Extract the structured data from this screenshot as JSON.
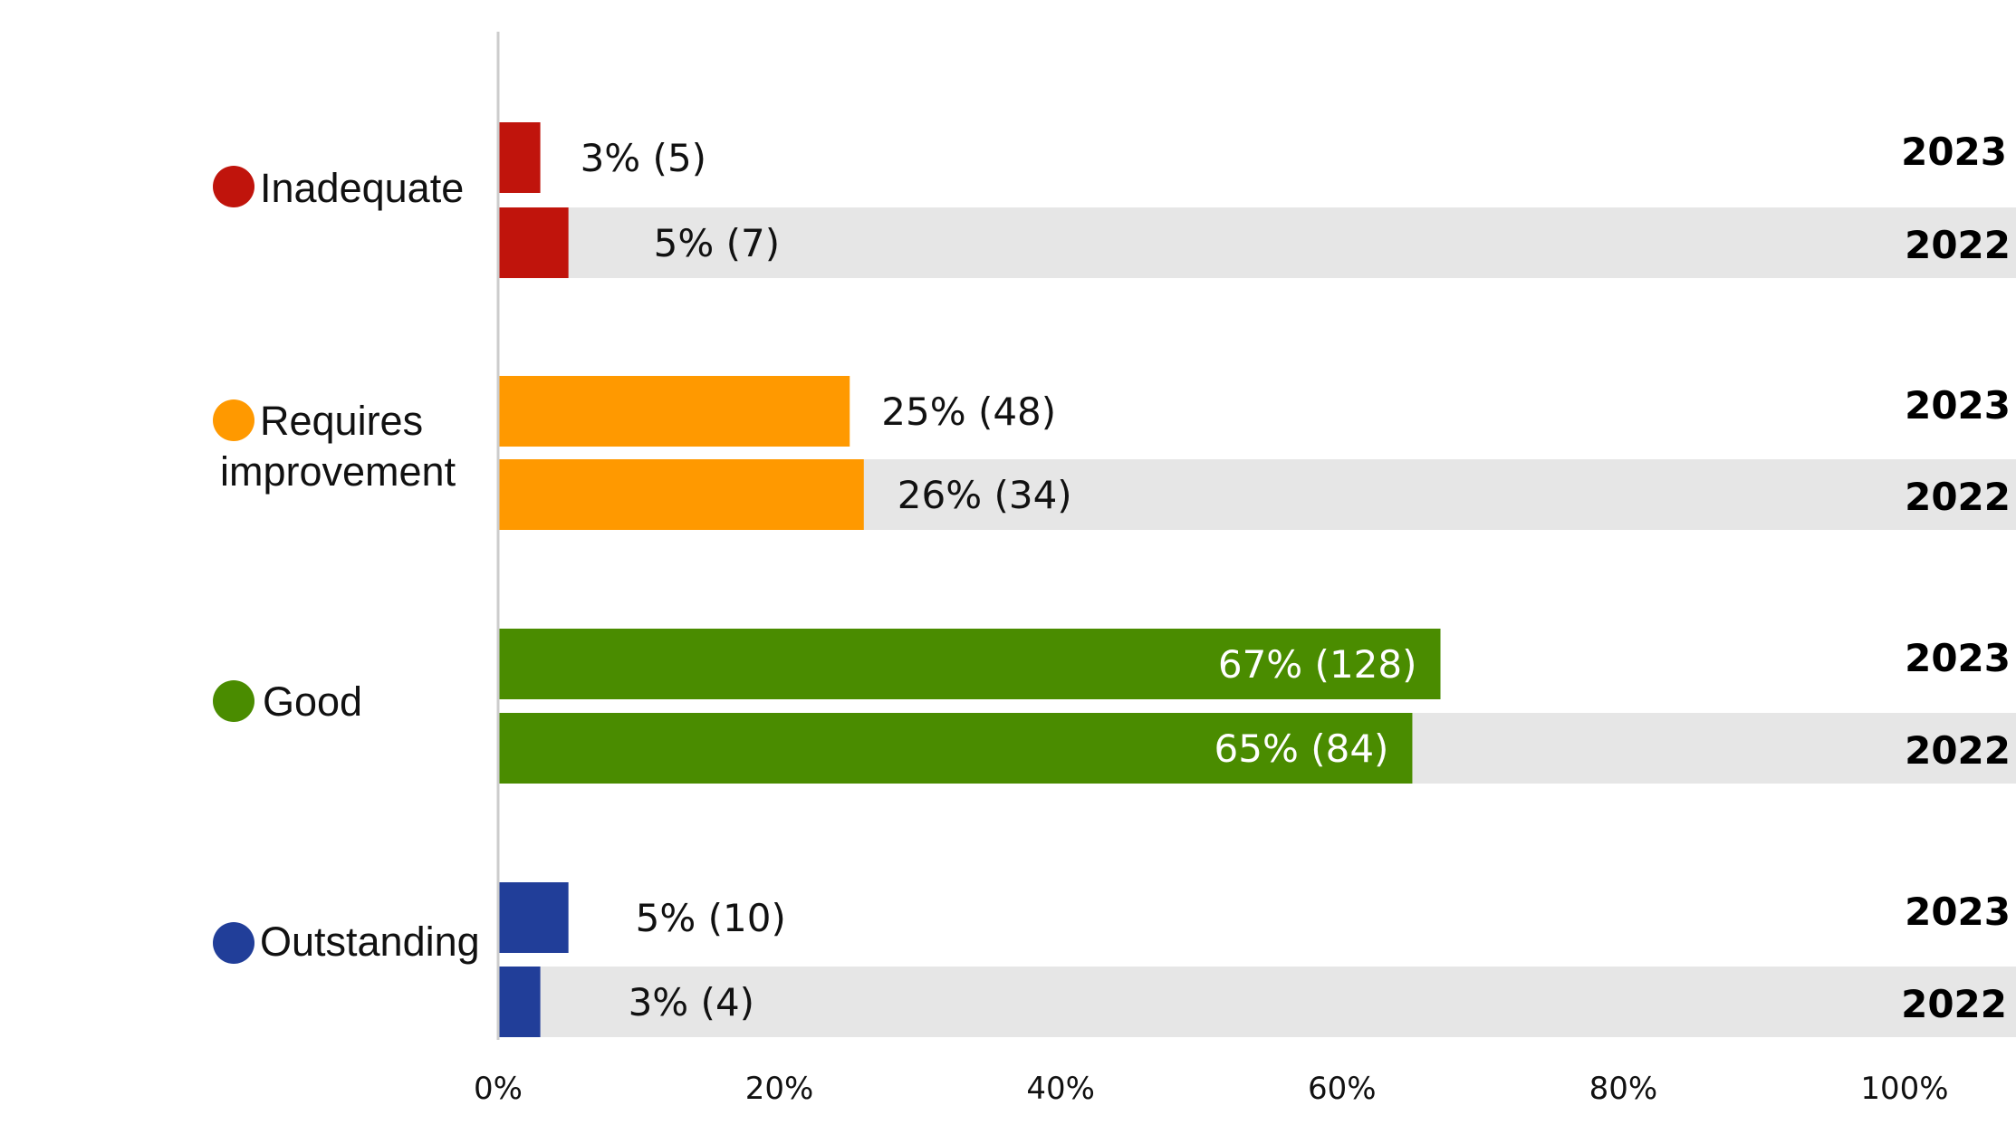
{
  "chart_data": {
    "type": "bar",
    "orientation": "horizontal",
    "title": "",
    "xlabel": "",
    "ylabel": "",
    "xlim": [
      0,
      100
    ],
    "ticks": [
      0,
      20,
      40,
      60,
      80,
      100
    ],
    "tick_suffix": "%",
    "grid": false,
    "track_color": "#e6e6e6",
    "years": [
      "2023",
      "2022"
    ],
    "categories": [
      {
        "name": "Inadequate",
        "lines": [
          "Inadequate"
        ],
        "color": "#c0140c",
        "bars": [
          {
            "year": "2023",
            "value": 3,
            "label": "3% (5)"
          },
          {
            "year": "2022",
            "value": 5,
            "label": "5% (7)"
          }
        ]
      },
      {
        "name": "Requires improvement",
        "lines": [
          "Requires",
          "improvement"
        ],
        "color": "#ff9900",
        "bars": [
          {
            "year": "2023",
            "value": 25,
            "label": "25% (48)"
          },
          {
            "year": "2022",
            "value": 26,
            "label": "26% (34)"
          }
        ]
      },
      {
        "name": "Good",
        "lines": [
          "Good"
        ],
        "color": "#4a8c00",
        "bars": [
          {
            "year": "2023",
            "value": 67,
            "label": "67% (128)"
          },
          {
            "year": "2022",
            "value": 65,
            "label": "65% (84)"
          }
        ]
      },
      {
        "name": "Outstanding",
        "lines": [
          "Outstanding"
        ],
        "color": "#213e99",
        "bars": [
          {
            "year": "2023",
            "value": 5,
            "label": "5% (10)"
          },
          {
            "year": "2022",
            "value": 3,
            "label": "3% (4)"
          }
        ]
      }
    ]
  }
}
